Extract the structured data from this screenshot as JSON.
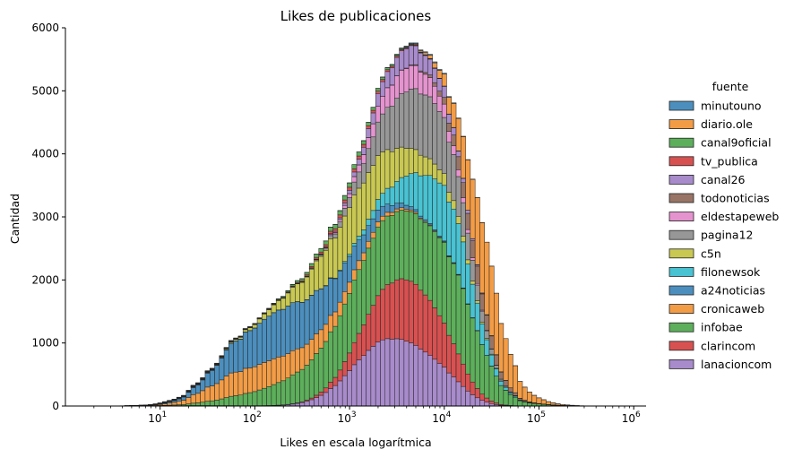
{
  "chart_data": {
    "type": "bar",
    "subtype": "stacked-histogram",
    "title": "Likes de publicaciones",
    "xlabel": "Likes en escala logarítmica",
    "ylabel": "Cantidad",
    "xscale": "log",
    "xlim": [
      1,
      1350000
    ],
    "ylim": [
      0,
      6000
    ],
    "bins_per_decade": 20,
    "y_ticks": [
      "0",
      "1000",
      "2000",
      "3000",
      "4000",
      "5000",
      "6000"
    ],
    "x_ticks": [
      {
        "base": "10",
        "exp": "1"
      },
      {
        "base": "10",
        "exp": "2"
      },
      {
        "base": "10",
        "exp": "3"
      },
      {
        "base": "10",
        "exp": "4"
      },
      {
        "base": "10",
        "exp": "5"
      },
      {
        "base": "10",
        "exp": "6"
      }
    ],
    "legend": {
      "title": "fuente",
      "placement": "outside-right"
    },
    "grid": false,
    "bins_log10": [
      0.3,
      0.35,
      0.4,
      0.45,
      0.5,
      0.55,
      0.6,
      0.65,
      0.7,
      0.75,
      0.8,
      0.85,
      0.9,
      0.95,
      1.0,
      1.05,
      1.1,
      1.15,
      1.2,
      1.25,
      1.3,
      1.35,
      1.4,
      1.45,
      1.5,
      1.55,
      1.6,
      1.65,
      1.7,
      1.75,
      1.8,
      1.85,
      1.9,
      1.95,
      2.0,
      2.05,
      2.1,
      2.15,
      2.2,
      2.25,
      2.3,
      2.35,
      2.4,
      2.45,
      2.5,
      2.55,
      2.6,
      2.65,
      2.7,
      2.75,
      2.8,
      2.85,
      2.9,
      2.95,
      3.0,
      3.05,
      3.1,
      3.15,
      3.2,
      3.25,
      3.3,
      3.35,
      3.4,
      3.45,
      3.5,
      3.55,
      3.6,
      3.65,
      3.7,
      3.75,
      3.8,
      3.85,
      3.9,
      3.95,
      4.0,
      4.05,
      4.1,
      4.15,
      4.2,
      4.25,
      4.3,
      4.35,
      4.4,
      4.45,
      4.5,
      4.55,
      4.6,
      4.65,
      4.7,
      4.75,
      4.8,
      4.85,
      4.9,
      4.95,
      5.0,
      5.05,
      5.1,
      5.15,
      5.2,
      5.25,
      5.3,
      5.35,
      5.4,
      5.45,
      5.5,
      5.55,
      5.6,
      5.65,
      5.7,
      5.75,
      5.8,
      5.85,
      5.9
    ],
    "totals": [
      1,
      1,
      1,
      2,
      2,
      3,
      4,
      6,
      8,
      10,
      14,
      18,
      25,
      35,
      50,
      70,
      90,
      110,
      140,
      170,
      250,
      330,
      370,
      450,
      560,
      600,
      680,
      800,
      930,
      1040,
      1080,
      1110,
      1230,
      1260,
      1310,
      1400,
      1480,
      1550,
      1630,
      1700,
      1740,
      1830,
      1930,
      1990,
      2020,
      2120,
      2260,
      2410,
      2500,
      2620,
      2840,
      2880,
      3100,
      3340,
      3540,
      3830,
      4030,
      4210,
      4500,
      4740,
      5040,
      5220,
      5370,
      5420,
      5580,
      5680,
      5710,
      5760,
      5760,
      5650,
      5620,
      5580,
      5460,
      5340,
      5280,
      4910,
      4810,
      4570,
      4280,
      3910,
      3600,
      3310,
      2910,
      2600,
      2220,
      1790,
      1310,
      1070,
      820,
      640,
      390,
      300,
      220,
      170,
      130,
      100,
      70,
      50,
      35,
      25,
      18,
      12,
      8,
      5,
      3,
      2,
      2,
      1,
      1,
      1
    ],
    "series": [
      {
        "name": "minutouno",
        "color": "#4c8fbe",
        "peak": 3.8,
        "width": 0.25,
        "amp": 10
      },
      {
        "name": "diario.ole",
        "color": "#f39c46",
        "peak": 4.6,
        "width": 0.3,
        "amp": 760
      },
      {
        "name": "canal9oficial",
        "color": "#5daf5b",
        "peak": 3.0,
        "width": 0.35,
        "amp": 40
      },
      {
        "name": "tv_publica",
        "color": "#d85151",
        "peak": 3.1,
        "width": 0.35,
        "amp": 30
      },
      {
        "name": "canal26",
        "color": "#a88bcb",
        "peak": 3.6,
        "width": 0.3,
        "amp": 230
      },
      {
        "name": "todonoticias",
        "color": "#987467",
        "peak": 4.4,
        "width": 0.3,
        "amp": 140
      },
      {
        "name": "eldestapeweb",
        "color": "#e593cf",
        "peak": 3.6,
        "width": 0.3,
        "amp": 280
      },
      {
        "name": "pagina12",
        "color": "#979797",
        "peak": 3.7,
        "width": 0.35,
        "amp": 700
      },
      {
        "name": "c5n",
        "color": "#c8c853",
        "peak": 3.2,
        "width": 0.45,
        "amp": 490
      },
      {
        "name": "filonewsok",
        "color": "#49c2d2",
        "peak": 3.9,
        "width": 0.35,
        "amp": 500
      },
      {
        "name": "a24noticias",
        "color": "#4c8fbe",
        "peak": 2.6,
        "width": 0.5,
        "amp": 340
      },
      {
        "name": "cronicaweb",
        "color": "#f39c46",
        "peak": 2.5,
        "width": 0.55,
        "amp": 160
      },
      {
        "name": "infobae",
        "color": "#5daf5b",
        "peak": 3.6,
        "width": 0.7,
        "amp": 820
      },
      {
        "name": "clarincom",
        "color": "#d85151",
        "peak": 3.6,
        "width": 0.35,
        "amp": 730
      },
      {
        "name": "lanacioncom",
        "color": "#a88bcb",
        "peak": 3.5,
        "width": 0.38,
        "amp": 800
      }
    ]
  }
}
